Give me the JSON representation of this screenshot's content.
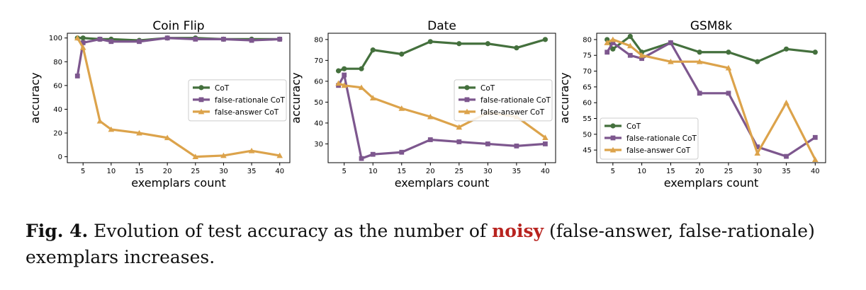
{
  "caption": {
    "label": "Fig. 4.",
    "text_before": " Evolution of test accuracy as the number of ",
    "highlight": "noisy",
    "text_after": " (false-answer, false-rationale) exemplars increases."
  },
  "colors": {
    "cot": "#44703d",
    "false_rationale": "#7d578e",
    "false_answer": "#dca34b"
  },
  "chart_data": [
    {
      "type": "line",
      "title": "Coin Flip",
      "xlabel": "exemplars count",
      "ylabel": "accuracy",
      "x": [
        4,
        5,
        8,
        10,
        15,
        20,
        25,
        30,
        35,
        40
      ],
      "xticks": [
        5,
        10,
        15,
        20,
        25,
        30,
        35,
        40
      ],
      "yticks": [
        0,
        20,
        40,
        60,
        80,
        100
      ],
      "xlim": [
        2.2,
        41.8
      ],
      "ylim": [
        -5,
        104
      ],
      "legend": "center-right",
      "series": [
        {
          "name": "CoT",
          "color": "#44703d",
          "marker": "circle",
          "values": [
            100,
            100,
            99,
            99,
            98,
            100,
            100,
            99,
            99,
            99
          ]
        },
        {
          "name": "false-rationale CoT",
          "color": "#7d578e",
          "marker": "square",
          "values": [
            68,
            96,
            99,
            97,
            97,
            100,
            99,
            99,
            98,
            99
          ]
        },
        {
          "name": "false-answer CoT",
          "color": "#dca34b",
          "marker": "triangle",
          "values": [
            100,
            92,
            30,
            23,
            20,
            16,
            0,
            1,
            5,
            1
          ]
        }
      ]
    },
    {
      "type": "line",
      "title": "Date",
      "xlabel": "exemplars count",
      "ylabel": "accuracy",
      "x": [
        4,
        5,
        8,
        10,
        15,
        20,
        25,
        30,
        35,
        40
      ],
      "xticks": [
        5,
        10,
        15,
        20,
        25,
        30,
        35,
        40
      ],
      "yticks": [
        30,
        40,
        50,
        60,
        70,
        80
      ],
      "xlim": [
        2.2,
        41.8
      ],
      "ylim": [
        21,
        83
      ],
      "legend": "center-right",
      "series": [
        {
          "name": "CoT",
          "color": "#44703d",
          "marker": "circle",
          "values": [
            65,
            66,
            66,
            75,
            73,
            79,
            78,
            78,
            76,
            80
          ]
        },
        {
          "name": "false-rationale CoT",
          "color": "#7d578e",
          "marker": "square",
          "values": [
            58,
            63,
            23,
            25,
            26,
            32,
            31,
            30,
            29,
            30
          ]
        },
        {
          "name": "false-answer CoT",
          "color": "#dca34b",
          "marker": "triangle",
          "values": [
            59,
            58,
            57,
            52,
            47,
            43,
            38,
            45,
            43,
            33
          ]
        }
      ]
    },
    {
      "type": "line",
      "title": "GSM8k",
      "xlabel": "exemplars count",
      "ylabel": "accuracy",
      "x": [
        4,
        5,
        8,
        10,
        15,
        20,
        25,
        30,
        35,
        40
      ],
      "xticks": [
        5,
        10,
        15,
        20,
        25,
        30,
        35,
        40
      ],
      "yticks": [
        45,
        50,
        55,
        60,
        65,
        70,
        75,
        80
      ],
      "xlim": [
        2.2,
        41.8
      ],
      "ylim": [
        41,
        82
      ],
      "legend": "lower-left",
      "series": [
        {
          "name": "CoT",
          "color": "#44703d",
          "marker": "circle",
          "values": [
            80,
            77,
            81,
            76,
            79,
            76,
            76,
            73,
            77,
            76
          ]
        },
        {
          "name": "false-rationale CoT",
          "color": "#7d578e",
          "marker": "square",
          "values": [
            76,
            79,
            75,
            74,
            79,
            63,
            63,
            46,
            43,
            49
          ]
        },
        {
          "name": "false-answer CoT",
          "color": "#dca34b",
          "marker": "triangle",
          "values": [
            79,
            80,
            78,
            75,
            73,
            73,
            71,
            44,
            60,
            42
          ]
        }
      ]
    }
  ]
}
